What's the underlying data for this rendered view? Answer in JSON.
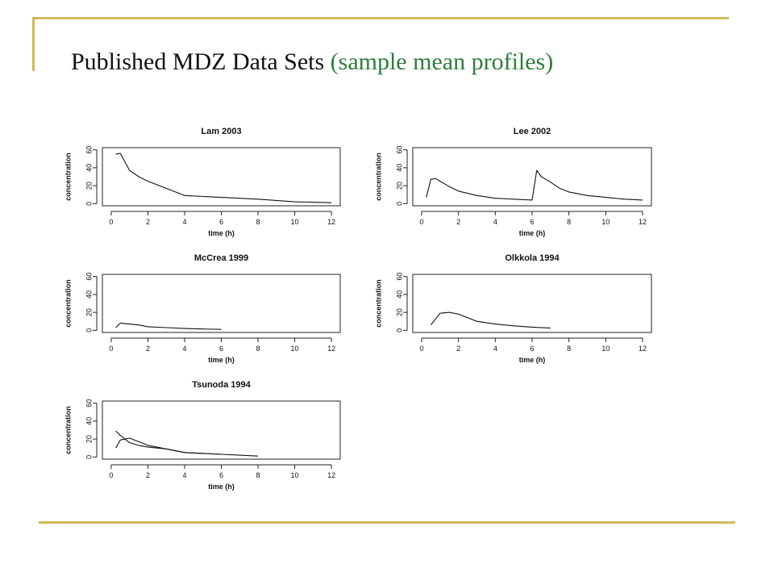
{
  "slide": {
    "title": "Published MDZ Data Sets",
    "subtitle": "(sample mean profiles)",
    "accent_color": "#cdbb5a",
    "subtitle_color": "#2e7d3a"
  },
  "chart_data": [
    {
      "type": "line",
      "title": "Lam 2003",
      "xlabel": "time (h)",
      "ylabel": "concentration",
      "xlim": [
        0,
        12
      ],
      "ylim": [
        0,
        60
      ],
      "xticks": [
        0,
        2,
        4,
        6,
        8,
        10,
        12
      ],
      "yticks": [
        0,
        20,
        40,
        60
      ],
      "series": [
        {
          "x": [
            0.25,
            0.5,
            1,
            1.5,
            2,
            3,
            4,
            6,
            8,
            10,
            12
          ],
          "y": [
            55,
            56,
            37,
            30,
            25,
            17,
            9,
            7,
            5,
            2,
            1
          ]
        }
      ]
    },
    {
      "type": "line",
      "title": "Lee 2002",
      "xlabel": "time (h)",
      "ylabel": "concentration",
      "xlim": [
        0,
        12
      ],
      "ylim": [
        0,
        60
      ],
      "xticks": [
        0,
        2,
        4,
        6,
        8,
        10,
        12
      ],
      "yticks": [
        0,
        20,
        40,
        60
      ],
      "series": [
        {
          "x": [
            0.25,
            0.5,
            0.75,
            1,
            1.5,
            2,
            3,
            4,
            5,
            6,
            6.25,
            6.5,
            6.75,
            7,
            7.5,
            8,
            9,
            10,
            11,
            12
          ],
          "y": [
            7,
            27,
            28,
            25,
            19,
            14,
            9,
            6,
            5,
            4,
            37,
            30,
            27,
            24,
            17,
            13,
            9,
            7,
            5,
            4
          ]
        }
      ]
    },
    {
      "type": "line",
      "title": "McCrea 1999",
      "xlabel": "time (h)",
      "ylabel": "concentration",
      "xlim": [
        0,
        12
      ],
      "ylim": [
        0,
        60
      ],
      "xticks": [
        0,
        2,
        4,
        6,
        8,
        10,
        12
      ],
      "yticks": [
        0,
        20,
        40,
        60
      ],
      "series": [
        {
          "x": [
            0.25,
            0.5,
            1,
            1.5,
            2,
            3,
            4,
            5,
            6
          ],
          "y": [
            3,
            8,
            7,
            6,
            4,
            3,
            2,
            1.5,
            1
          ]
        }
      ]
    },
    {
      "type": "line",
      "title": "Olkkola 1994",
      "xlabel": "time (h)",
      "ylabel": "concentration",
      "xlim": [
        0,
        12
      ],
      "ylim": [
        0,
        60
      ],
      "xticks": [
        0,
        2,
        4,
        6,
        8,
        10,
        12
      ],
      "yticks": [
        0,
        20,
        40,
        60
      ],
      "series": [
        {
          "x": [
            0.5,
            1,
            1.5,
            2,
            2.5,
            3,
            4,
            5,
            6,
            7
          ],
          "y": [
            6,
            19,
            20,
            18,
            14,
            10,
            7,
            5,
            3.5,
            2.5
          ]
        }
      ]
    },
    {
      "type": "line",
      "title": "Tsunoda 1994",
      "xlabel": "time (h)",
      "ylabel": "concentration",
      "xlim": [
        0,
        12
      ],
      "ylim": [
        0,
        60
      ],
      "xticks": [
        0,
        2,
        4,
        6,
        8,
        10,
        12
      ],
      "yticks": [
        0,
        20,
        40,
        60
      ],
      "series": [
        {
          "x": [
            0.25,
            0.5,
            1,
            1.5,
            2,
            3,
            4,
            5,
            6,
            7,
            8
          ],
          "y": [
            29,
            24,
            16,
            13,
            11,
            9,
            5,
            4,
            3,
            2,
            1
          ]
        },
        {
          "x": [
            0.25,
            0.5,
            1,
            1.5,
            2,
            3,
            4,
            5,
            6
          ],
          "y": [
            10,
            19,
            21,
            17,
            13,
            9,
            5,
            4,
            3
          ]
        }
      ]
    }
  ]
}
